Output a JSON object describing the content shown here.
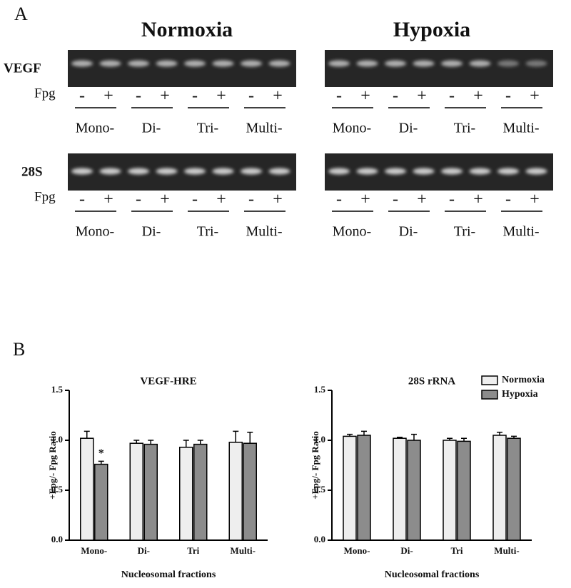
{
  "panel_a": {
    "label": "A",
    "conditions": [
      "Normoxia",
      "Hypoxia"
    ],
    "rows": [
      "VEGF",
      "28S"
    ],
    "treatment": "Fpg",
    "signs": [
      "-",
      "+"
    ],
    "fractions": [
      "Mono-",
      "Di-",
      "Tri-",
      "Multi-"
    ]
  },
  "panel_b": {
    "label": "B"
  },
  "chart_data": [
    {
      "type": "bar",
      "title": "VEGF-HRE",
      "y_label": "+Fpg/- Fpg Ratio",
      "x_label": "Nucleosomal fractions",
      "categories": [
        "Mono-",
        "Di-",
        "Tri",
        "Multi-"
      ],
      "series": [
        {
          "name": "Normoxia",
          "color": "#eeeeee",
          "values": [
            1.02,
            0.97,
            0.93,
            0.98
          ],
          "error": [
            0.07,
            0.03,
            0.07,
            0.11
          ]
        },
        {
          "name": "Hypoxia",
          "color": "#8c8c8c",
          "values": [
            0.76,
            0.96,
            0.96,
            0.97
          ],
          "error": [
            0.03,
            0.04,
            0.04,
            0.11
          ]
        }
      ],
      "annotations": [
        {
          "text": "*",
          "category": "Mono-",
          "series": "Hypoxia"
        }
      ],
      "ylim": [
        0,
        1.5
      ],
      "yticks": [
        {
          "value": 0,
          "label": "0.0"
        },
        0.5,
        {
          "value": 1,
          "label": "1.0"
        },
        1.5
      ],
      "legend": false
    },
    {
      "type": "bar",
      "title": "28S rRNA",
      "y_label": "+Fpg/- Fpg Ratio",
      "x_label": "Nucleosomal fractions",
      "categories": [
        "Mono-",
        "Di-",
        "Tri",
        "Multi-"
      ],
      "series": [
        {
          "name": "Normoxia",
          "color": "#eeeeee",
          "values": [
            1.04,
            1.02,
            1.0,
            1.05
          ],
          "error": [
            0.02,
            0.01,
            0.02,
            0.03
          ]
        },
        {
          "name": "Hypoxia",
          "color": "#8c8c8c",
          "values": [
            1.05,
            1.0,
            0.99,
            1.02
          ],
          "error": [
            0.04,
            0.06,
            0.03,
            0.02
          ]
        }
      ],
      "ylim": [
        0,
        1.5
      ],
      "yticks": [
        {
          "value": 0,
          "label": "0.0"
        },
        0.5,
        {
          "value": 1,
          "label": "1.0"
        },
        1.5
      ],
      "legend": "upper right"
    }
  ]
}
